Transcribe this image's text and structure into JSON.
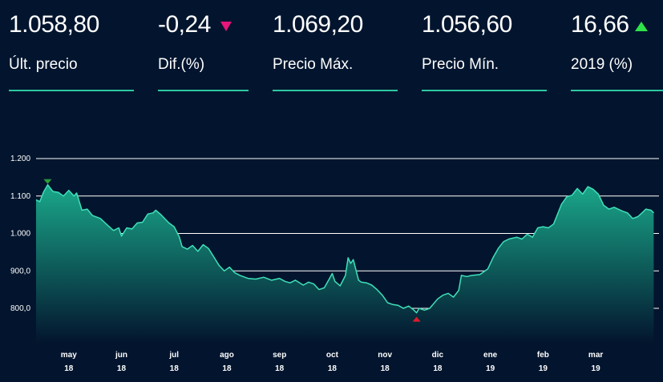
{
  "stats": [
    {
      "value": "1.058,80",
      "label": "Últ. precio"
    },
    {
      "value": "-0,24",
      "label": "Dif.(%)",
      "indicator": "down-triangle-icon",
      "indicator_color": "#e8157a"
    },
    {
      "value": "1.069,20",
      "label": "Precio Máx."
    },
    {
      "value": "1.056,60",
      "label": "Precio Mín."
    },
    {
      "value": "16,66",
      "label": "2019 (%)",
      "indicator": "up-triangle-icon",
      "indicator_color": "#2ee34a"
    }
  ],
  "colors": {
    "background": "#03152e",
    "accent": "#2ec7a1",
    "line": "#3fe0b8",
    "fill_top": "#1aa88a",
    "fill_bottom": "#03152e",
    "max_marker": "#2a9d3a",
    "min_marker": "#e01b2a"
  },
  "chart_data": {
    "type": "area",
    "y_ticks": [
      {
        "value": 800,
        "label": "800,0"
      },
      {
        "value": 900,
        "label": "900,0"
      },
      {
        "value": 1000,
        "label": "1.000"
      },
      {
        "value": 1100,
        "label": "1.100"
      },
      {
        "value": 1200,
        "label": "1.200"
      }
    ],
    "ylim": [
      700,
      1200
    ],
    "x_ticks": [
      {
        "month": "may",
        "year": "18"
      },
      {
        "month": "jun",
        "year": "18"
      },
      {
        "month": "jul",
        "year": "18"
      },
      {
        "month": "ago",
        "year": "18"
      },
      {
        "month": "sep",
        "year": "18"
      },
      {
        "month": "oct",
        "year": "18"
      },
      {
        "month": "nov",
        "year": "18"
      },
      {
        "month": "dic",
        "year": "18"
      },
      {
        "month": "ene",
        "year": "19"
      },
      {
        "month": "feb",
        "year": "19"
      },
      {
        "month": "mar",
        "year": "19"
      }
    ],
    "x_tick_positions": [
      1,
      2,
      3,
      4,
      5,
      6,
      7,
      8,
      9,
      10,
      11
    ],
    "x_range": [
      0.38,
      12.2
    ],
    "grid": true,
    "max_point": {
      "x": 0.6,
      "y": 1130
    },
    "min_point": {
      "x": 7.6,
      "y": 788
    },
    "points": [
      [
        0.38,
        1090
      ],
      [
        0.45,
        1085
      ],
      [
        0.52,
        1110
      ],
      [
        0.6,
        1130
      ],
      [
        0.7,
        1112
      ],
      [
        0.8,
        1110
      ],
      [
        0.9,
        1100
      ],
      [
        1.0,
        1115
      ],
      [
        1.1,
        1100
      ],
      [
        1.15,
        1108
      ],
      [
        1.25,
        1062
      ],
      [
        1.35,
        1065
      ],
      [
        1.45,
        1048
      ],
      [
        1.6,
        1040
      ],
      [
        1.75,
        1020
      ],
      [
        1.85,
        1008
      ],
      [
        1.95,
        1015
      ],
      [
        2.0,
        993
      ],
      [
        2.1,
        1015
      ],
      [
        2.2,
        1012
      ],
      [
        2.3,
        1028
      ],
      [
        2.4,
        1030
      ],
      [
        2.5,
        1052
      ],
      [
        2.6,
        1055
      ],
      [
        2.65,
        1062
      ],
      [
        2.75,
        1050
      ],
      [
        2.9,
        1028
      ],
      [
        3.0,
        1018
      ],
      [
        3.1,
        990
      ],
      [
        3.15,
        965
      ],
      [
        3.25,
        958
      ],
      [
        3.35,
        968
      ],
      [
        3.45,
        952
      ],
      [
        3.55,
        970
      ],
      [
        3.65,
        960
      ],
      [
        3.75,
        938
      ],
      [
        3.85,
        915
      ],
      [
        3.95,
        900
      ],
      [
        4.05,
        910
      ],
      [
        4.15,
        895
      ],
      [
        4.25,
        888
      ],
      [
        4.4,
        880
      ],
      [
        4.55,
        878
      ],
      [
        4.7,
        883
      ],
      [
        4.85,
        875
      ],
      [
        5.0,
        880
      ],
      [
        5.1,
        872
      ],
      [
        5.2,
        868
      ],
      [
        5.3,
        875
      ],
      [
        5.45,
        862
      ],
      [
        5.55,
        870
      ],
      [
        5.65,
        865
      ],
      [
        5.75,
        850
      ],
      [
        5.85,
        855
      ],
      [
        5.95,
        880
      ],
      [
        6.0,
        893
      ],
      [
        6.05,
        872
      ],
      [
        6.15,
        860
      ],
      [
        6.25,
        888
      ],
      [
        6.3,
        935
      ],
      [
        6.35,
        920
      ],
      [
        6.4,
        930
      ],
      [
        6.5,
        875
      ],
      [
        6.55,
        870
      ],
      [
        6.65,
        868
      ],
      [
        6.75,
        862
      ],
      [
        6.85,
        850
      ],
      [
        6.95,
        835
      ],
      [
        7.05,
        815
      ],
      [
        7.15,
        810
      ],
      [
        7.25,
        808
      ],
      [
        7.35,
        800
      ],
      [
        7.45,
        806
      ],
      [
        7.55,
        795
      ],
      [
        7.6,
        788
      ],
      [
        7.65,
        800
      ],
      [
        7.75,
        795
      ],
      [
        7.85,
        800
      ],
      [
        8.0,
        825
      ],
      [
        8.1,
        835
      ],
      [
        8.2,
        840
      ],
      [
        8.3,
        830
      ],
      [
        8.4,
        848
      ],
      [
        8.45,
        888
      ],
      [
        8.55,
        885
      ],
      [
        8.65,
        888
      ],
      [
        8.8,
        890
      ],
      [
        8.95,
        905
      ],
      [
        9.05,
        935
      ],
      [
        9.15,
        960
      ],
      [
        9.25,
        978
      ],
      [
        9.35,
        985
      ],
      [
        9.5,
        990
      ],
      [
        9.6,
        985
      ],
      [
        9.7,
        998
      ],
      [
        9.8,
        990
      ],
      [
        9.9,
        1015
      ],
      [
        10.0,
        1018
      ],
      [
        10.1,
        1015
      ],
      [
        10.2,
        1025
      ],
      [
        10.3,
        1060
      ],
      [
        10.35,
        1078
      ],
      [
        10.45,
        1098
      ],
      [
        10.55,
        1102
      ],
      [
        10.65,
        1120
      ],
      [
        10.75,
        1105
      ],
      [
        10.85,
        1125
      ],
      [
        10.95,
        1118
      ],
      [
        11.05,
        1105
      ],
      [
        11.15,
        1075
      ],
      [
        11.25,
        1065
      ],
      [
        11.35,
        1070
      ],
      [
        11.5,
        1060
      ],
      [
        11.6,
        1055
      ],
      [
        11.7,
        1040
      ],
      [
        11.8,
        1045
      ],
      [
        11.9,
        1058
      ],
      [
        11.95,
        1065
      ],
      [
        12.05,
        1062
      ],
      [
        12.1,
        1055
      ]
    ]
  }
}
